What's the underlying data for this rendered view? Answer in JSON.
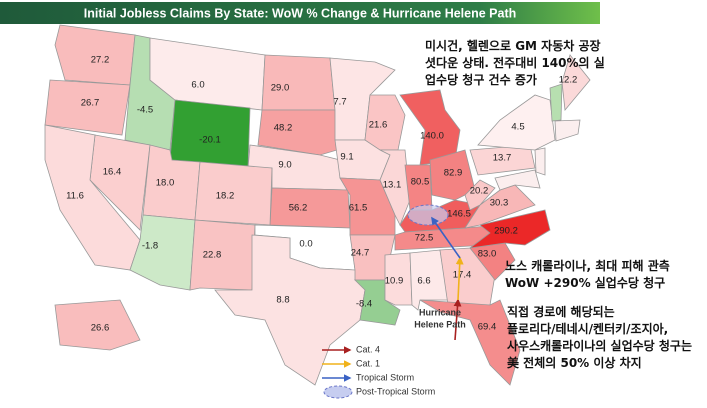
{
  "header": {
    "title": "Initial Jobless Claims By State: WoW % Change & Hurricane Helene Path"
  },
  "states": {
    "values": [
      "27.2",
      "26.7",
      "-4.5",
      "6.0",
      "-20.1",
      "29.0",
      "48.2",
      "9.0",
      "56.2",
      "16.4",
      "11.6",
      "18.0",
      "18.2",
      "-1.8",
      "22.8",
      "0.0",
      "8.8",
      "7.7",
      "9.1",
      "61.5",
      "24.7",
      "-8.4",
      "21.6",
      "13.1",
      "140.0",
      "80.5",
      "82.9",
      "146.5",
      "72.5",
      "10.9",
      "6.6",
      "17.4",
      "69.4",
      "83.0",
      "290.2",
      "30.3",
      "20.2",
      "13.7",
      "4.5",
      "12.2",
      "26.6"
    ]
  },
  "annotations": {
    "michigan": [
      "미시건, 헬렌으로 GM 자동차 공장",
      "셧다운 상태. 전주대비 140%의 실",
      "업수당 청구 건수 증가"
    ],
    "north_carolina": [
      "노스 캐롤라이나, 최대 피해 관측",
      "WoW +290% 실업수당 청구"
    ],
    "direct_path": [
      "직접 경로에 해당되는",
      "플로리다/테네시/켄터키/조지아,",
      "사우스캐롤라이나의 실업수당 청구는",
      "美 전체의 50% 이상 차지"
    ],
    "path_label": [
      "Hurricane",
      "Helene Path"
    ]
  },
  "legend": {
    "items": [
      "Cat. 4",
      "Cat. 1",
      "Tropical Storm",
      "Post-Tropical Storm"
    ]
  }
}
